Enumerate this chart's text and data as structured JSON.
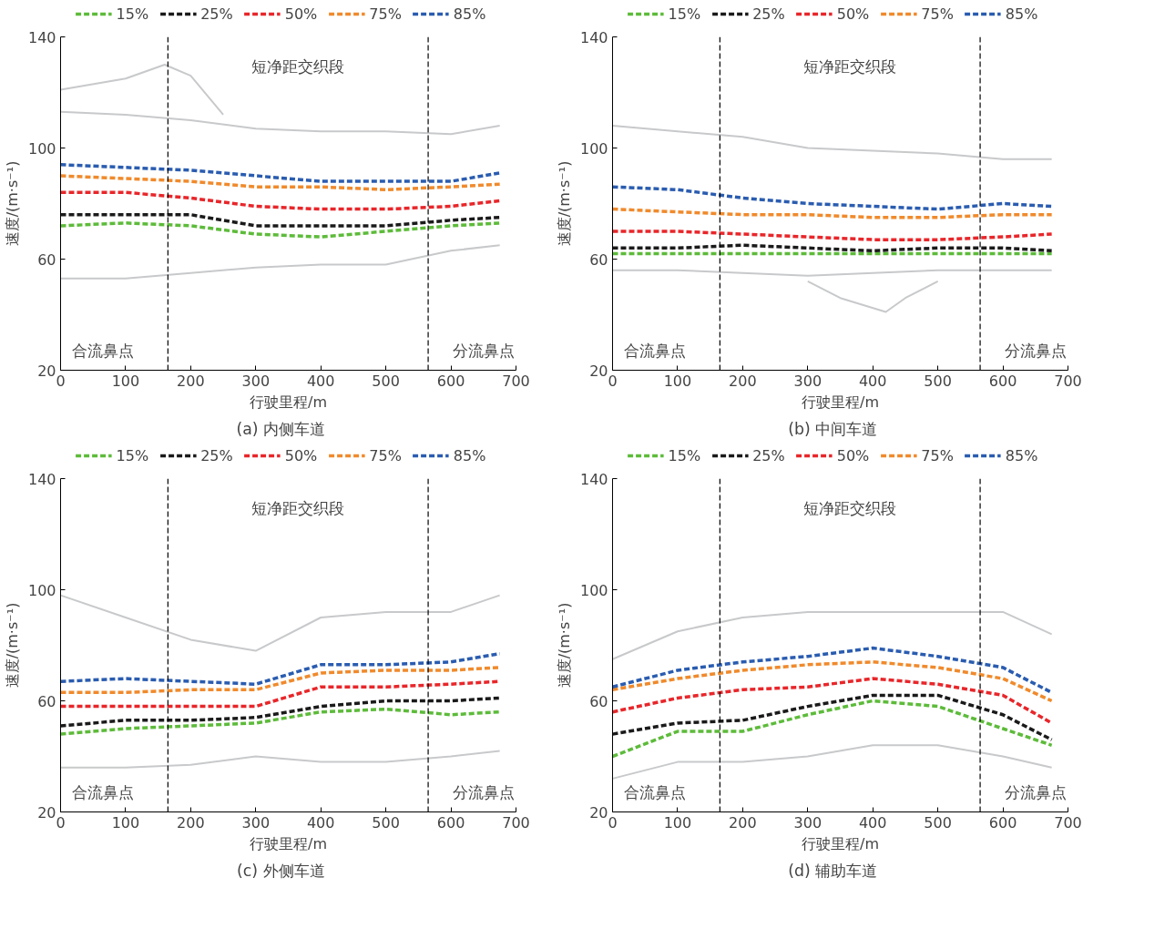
{
  "chart_data": [
    {
      "type": "line",
      "title": "(a)    内侧车道",
      "xlabel": "行驶里程/m",
      "ylabel": "速度/(m·s⁻¹)",
      "x": [
        0,
        100,
        200,
        300,
        400,
        500,
        600,
        675
      ],
      "xlim": [
        0,
        700
      ],
      "ylim": [
        20,
        140
      ],
      "xticks": [
        0,
        100,
        200,
        300,
        400,
        500,
        600,
        700
      ],
      "yticks": [
        20,
        60,
        100,
        140
      ],
      "grid": false,
      "legend": "top",
      "line_style": "dashed",
      "marker": "none",
      "series": [
        {
          "color": "#c8c9cb",
          "line_style": "solid",
          "values": [
            113,
            112,
            110,
            107,
            106,
            106,
            105,
            108
          ]
        },
        {
          "color": "#c8c9cb",
          "line_style": "solid",
          "values": [
            53,
            53,
            55,
            57,
            58,
            58,
            63,
            65
          ]
        },
        {
          "color": "#c8c9cb",
          "line_style": "solid",
          "x": [
            0,
            100,
            160,
            200,
            250
          ],
          "values": [
            121,
            125,
            130,
            126,
            112
          ]
        },
        {
          "name": "15%",
          "color": "#5dbb3a",
          "values": [
            72,
            73,
            72,
            69,
            68,
            70,
            72,
            73
          ]
        },
        {
          "name": "25%",
          "color": "#1a1a1a",
          "values": [
            76,
            76,
            76,
            72,
            72,
            72,
            74,
            75
          ]
        },
        {
          "name": "50%",
          "color": "#e8262a",
          "values": [
            84,
            84,
            82,
            79,
            78,
            78,
            79,
            81
          ]
        },
        {
          "name": "75%",
          "color": "#f08a2c",
          "values": [
            90,
            89,
            88,
            86,
            86,
            85,
            86,
            87
          ]
        },
        {
          "name": "85%",
          "color": "#2a5cb0",
          "values": [
            94,
            93,
            92,
            90,
            88,
            88,
            88,
            91
          ]
        }
      ],
      "ref_lines": [
        {
          "axis": "x",
          "value": 165,
          "color": "#000000",
          "line_style": "dashed"
        },
        {
          "axis": "x",
          "value": 565,
          "color": "#000000",
          "line_style": "dashed"
        }
      ],
      "annotations": [
        "短净距交织段",
        "合流鼻点",
        "分流鼻点"
      ]
    },
    {
      "type": "line",
      "title": "(b)    中间车道",
      "xlabel": "行驶里程/m",
      "ylabel": "速度/(m·s⁻¹)",
      "x": [
        0,
        100,
        200,
        300,
        400,
        500,
        600,
        675
      ],
      "xlim": [
        0,
        700
      ],
      "ylim": [
        20,
        140
      ],
      "xticks": [
        0,
        100,
        200,
        300,
        400,
        500,
        600,
        700
      ],
      "yticks": [
        20,
        60,
        100,
        140
      ],
      "grid": false,
      "legend": "top",
      "line_style": "dashed",
      "marker": "none",
      "series": [
        {
          "color": "#c8c9cb",
          "line_style": "solid",
          "values": [
            108,
            106,
            104,
            100,
            99,
            98,
            96,
            96
          ]
        },
        {
          "color": "#c8c9cb",
          "line_style": "solid",
          "values": [
            56,
            56,
            55,
            54,
            55,
            56,
            56,
            56
          ]
        },
        {
          "color": "#c8c9cb",
          "line_style": "solid",
          "x": [
            300,
            350,
            420,
            450,
            500
          ],
          "values": [
            52,
            46,
            41,
            46,
            52
          ]
        },
        {
          "name": "15%",
          "color": "#5dbb3a",
          "values": [
            62,
            62,
            62,
            62,
            62,
            62,
            62,
            62
          ]
        },
        {
          "name": "25%",
          "color": "#1a1a1a",
          "values": [
            64,
            64,
            65,
            64,
            63,
            64,
            64,
            63
          ]
        },
        {
          "name": "50%",
          "color": "#e8262a",
          "values": [
            70,
            70,
            69,
            68,
            67,
            67,
            68,
            69
          ]
        },
        {
          "name": "75%",
          "color": "#f08a2c",
          "values": [
            78,
            77,
            76,
            76,
            75,
            75,
            76,
            76
          ]
        },
        {
          "name": "85%",
          "color": "#2a5cb0",
          "values": [
            86,
            85,
            82,
            80,
            79,
            78,
            80,
            79
          ]
        }
      ],
      "ref_lines": [
        {
          "axis": "x",
          "value": 165,
          "color": "#000000",
          "line_style": "dashed"
        },
        {
          "axis": "x",
          "value": 565,
          "color": "#000000",
          "line_style": "dashed"
        }
      ],
      "annotations": [
        "短净距交织段",
        "合流鼻点",
        "分流鼻点"
      ]
    },
    {
      "type": "line",
      "title": "(c)    外侧车道",
      "xlabel": "行驶里程/m",
      "ylabel": "速度/(m·s⁻¹)",
      "x": [
        0,
        100,
        200,
        300,
        400,
        500,
        600,
        675
      ],
      "xlim": [
        0,
        700
      ],
      "ylim": [
        20,
        140
      ],
      "xticks": [
        0,
        100,
        200,
        300,
        400,
        500,
        600,
        700
      ],
      "yticks": [
        20,
        60,
        100,
        140
      ],
      "grid": false,
      "legend": "top",
      "line_style": "dashed",
      "marker": "none",
      "series": [
        {
          "color": "#c8c9cb",
          "line_style": "solid",
          "values": [
            98,
            90,
            82,
            78,
            90,
            92,
            92,
            98
          ]
        },
        {
          "color": "#c8c9cb",
          "line_style": "solid",
          "values": [
            36,
            36,
            37,
            40,
            38,
            38,
            40,
            42
          ]
        },
        {
          "name": "15%",
          "color": "#5dbb3a",
          "values": [
            48,
            50,
            51,
            52,
            56,
            57,
            55,
            56
          ]
        },
        {
          "name": "25%",
          "color": "#1a1a1a",
          "values": [
            51,
            53,
            53,
            54,
            58,
            60,
            60,
            61
          ]
        },
        {
          "name": "50%",
          "color": "#e8262a",
          "values": [
            58,
            58,
            58,
            58,
            65,
            65,
            66,
            67
          ]
        },
        {
          "name": "75%",
          "color": "#f08a2c",
          "values": [
            63,
            63,
            64,
            64,
            70,
            71,
            71,
            72
          ]
        },
        {
          "name": "85%",
          "color": "#2a5cb0",
          "values": [
            67,
            68,
            67,
            66,
            73,
            73,
            74,
            77
          ]
        }
      ],
      "ref_lines": [
        {
          "axis": "x",
          "value": 165,
          "color": "#000000",
          "line_style": "dashed"
        },
        {
          "axis": "x",
          "value": 565,
          "color": "#000000",
          "line_style": "dashed"
        }
      ],
      "annotations": [
        "短净距交织段",
        "合流鼻点",
        "分流鼻点"
      ]
    },
    {
      "type": "line",
      "title": "(d)    辅助车道",
      "xlabel": "行驶里程/m",
      "ylabel": "速度/(m·s⁻¹)",
      "x": [
        0,
        100,
        200,
        300,
        400,
        500,
        600,
        675
      ],
      "xlim": [
        0,
        700
      ],
      "ylim": [
        20,
        140
      ],
      "xticks": [
        0,
        100,
        200,
        300,
        400,
        500,
        600,
        700
      ],
      "yticks": [
        20,
        60,
        100,
        140
      ],
      "grid": false,
      "legend": "top",
      "line_style": "dashed",
      "marker": "none",
      "series": [
        {
          "color": "#c8c9cb",
          "line_style": "solid",
          "values": [
            75,
            85,
            90,
            92,
            92,
            92,
            92,
            84
          ]
        },
        {
          "color": "#c8c9cb",
          "line_style": "solid",
          "values": [
            32,
            38,
            38,
            40,
            44,
            44,
            40,
            36
          ]
        },
        {
          "name": "15%",
          "color": "#5dbb3a",
          "values": [
            40,
            49,
            49,
            55,
            60,
            58,
            50,
            44
          ]
        },
        {
          "name": "25%",
          "color": "#1a1a1a",
          "values": [
            48,
            52,
            53,
            58,
            62,
            62,
            55,
            46
          ]
        },
        {
          "name": "50%",
          "color": "#e8262a",
          "values": [
            56,
            61,
            64,
            65,
            68,
            66,
            62,
            52
          ]
        },
        {
          "name": "75%",
          "color": "#f08a2c",
          "values": [
            64,
            68,
            71,
            73,
            74,
            72,
            68,
            60
          ]
        },
        {
          "name": "85%",
          "color": "#2a5cb0",
          "values": [
            65,
            71,
            74,
            76,
            79,
            76,
            72,
            63
          ]
        }
      ],
      "ref_lines": [
        {
          "axis": "x",
          "value": 165,
          "color": "#000000",
          "line_style": "dashed"
        },
        {
          "axis": "x",
          "value": 565,
          "color": "#000000",
          "line_style": "dashed"
        }
      ],
      "annotations": [
        "短净距交织段",
        "合流鼻点",
        "分流鼻点"
      ]
    }
  ]
}
